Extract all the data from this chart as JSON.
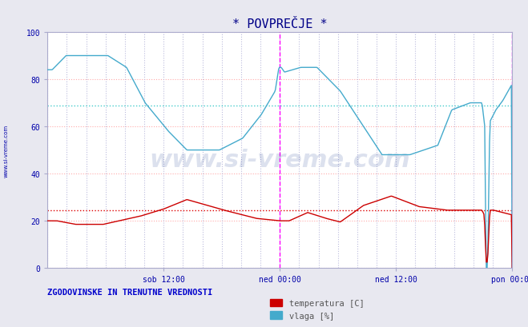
{
  "title": "* POVPREČJE *",
  "background_color": "#e8e8f0",
  "plot_bg_color": "#ffffff",
  "grid_color_h": "#ffaaaa",
  "grid_color_v": "#bbbbdd",
  "ylim": [
    0,
    100
  ],
  "yticks": [
    0,
    20,
    40,
    60,
    80,
    100
  ],
  "x_tick_labels": [
    "sob 12:00",
    "ned 00:00",
    "ned 12:00",
    "pon 00:00"
  ],
  "temp_avg": 24.5,
  "vlaga_avg": 69,
  "temp_color": "#cc0000",
  "vlaga_color": "#44aacc",
  "avg_temp_color": "#dd0000",
  "avg_vlaga_color": "#44cccc",
  "title_color": "#000088",
  "axis_label_color": "#0000aa",
  "legend_label_color": "#555555",
  "watermark_color": "#1a3a8e",
  "watermark_alpha": 0.15,
  "footer_text": "ZGODOVINSKE IN TRENUTNE VREDNOSTI",
  "footer_color": "#0000cc",
  "vline_color": "#ff00ff",
  "sidebar_text_color": "#0000aa",
  "spine_color": "#aaaacc"
}
